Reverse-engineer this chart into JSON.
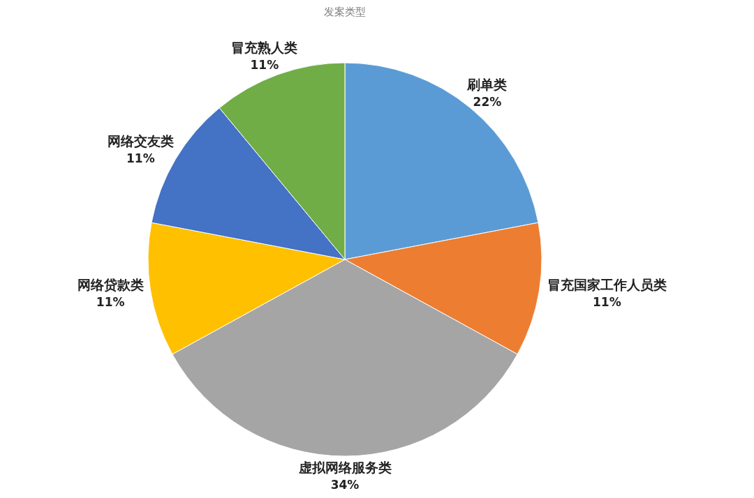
{
  "chart_data": {
    "type": "pie",
    "title": "发案类型",
    "categories": [
      "刷单类",
      "冒充国家工作人员类",
      "虚拟网络服务类",
      "网络贷款类",
      "网络交友类",
      "冒充熟人类"
    ],
    "values": [
      22,
      11,
      34,
      11,
      11,
      11
    ],
    "value_labels": [
      "22%",
      "11%",
      "34%",
      "11%",
      "11%",
      "11%"
    ],
    "colors": [
      "#5b9bd5",
      "#ed7d31",
      "#a5a5a5",
      "#ffc000",
      "#4472c4",
      "#70ad47"
    ]
  }
}
